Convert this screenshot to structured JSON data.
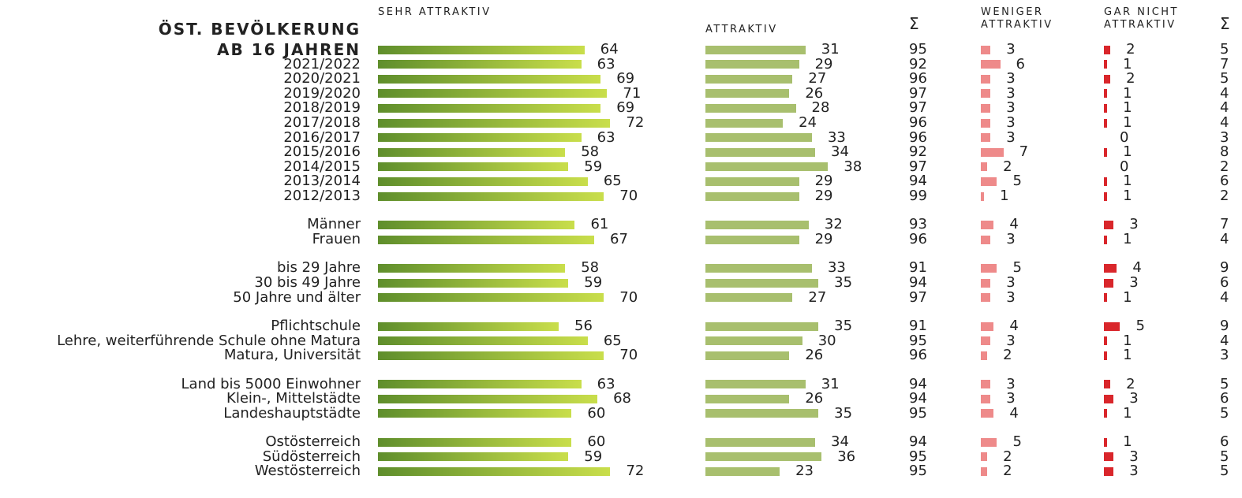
{
  "chart_data": {
    "type": "bar",
    "title": "ÖST. BEVÖLKERUNG",
    "categories": [
      "AB 16 JAHREN",
      "2021/2022",
      "2020/2021",
      "2019/2020",
      "2018/2019",
      "2017/2018",
      "2016/2017",
      "2015/2016",
      "2014/2015",
      "2013/2014",
      "2012/2013",
      "Männer",
      "Frauen",
      "bis 29 Jahre",
      "30 bis 49 Jahre",
      "50 Jahre und älter",
      "Pflichtschule",
      "Lehre, weiterführende Schule ohne Matura",
      "Matura, Universität",
      "Land bis 5000 Einwohner",
      "Klein-, Mittelstädte",
      "Landeshauptstädte",
      "Ostösterreich",
      "Südösterreich",
      "Westösterreich"
    ],
    "series": [
      {
        "name": "SEHR ATTRAKTIV",
        "color": [
          "#5f8e2c",
          "#c9de4b"
        ],
        "values": [
          64,
          63,
          69,
          71,
          69,
          72,
          63,
          58,
          59,
          65,
          70,
          61,
          67,
          58,
          59,
          70,
          56,
          65,
          70,
          63,
          68,
          60,
          60,
          59,
          72
        ]
      },
      {
        "name": "ATTRAKTIV",
        "color": "#a8bf6e",
        "values": [
          31,
          29,
          27,
          26,
          28,
          24,
          33,
          34,
          38,
          29,
          29,
          32,
          29,
          33,
          35,
          27,
          35,
          30,
          26,
          31,
          26,
          35,
          34,
          36,
          23
        ]
      },
      {
        "name": "Σ",
        "values": [
          95,
          92,
          96,
          97,
          97,
          96,
          96,
          92,
          97,
          94,
          99,
          93,
          96,
          91,
          94,
          97,
          91,
          95,
          96,
          94,
          94,
          95,
          94,
          95,
          95
        ]
      },
      {
        "name": "WENIGER ATTRAKTIV",
        "color": "#ee8a8a",
        "values": [
          3,
          6,
          3,
          3,
          3,
          3,
          3,
          7,
          2,
          5,
          1,
          4,
          3,
          5,
          3,
          3,
          4,
          3,
          2,
          3,
          3,
          4,
          5,
          2,
          2
        ]
      },
      {
        "name": "GAR NICHT ATTRAKTIV",
        "color": "#d9262b",
        "values": [
          2,
          1,
          2,
          1,
          1,
          1,
          0,
          1,
          0,
          1,
          1,
          3,
          1,
          4,
          3,
          1,
          5,
          1,
          1,
          2,
          3,
          1,
          1,
          3,
          3
        ]
      },
      {
        "name": "Σ",
        "values": [
          5,
          7,
          5,
          4,
          4,
          4,
          3,
          8,
          2,
          6,
          2,
          7,
          4,
          9,
          6,
          4,
          9,
          4,
          3,
          5,
          6,
          5,
          6,
          5,
          5
        ]
      }
    ]
  }
}
